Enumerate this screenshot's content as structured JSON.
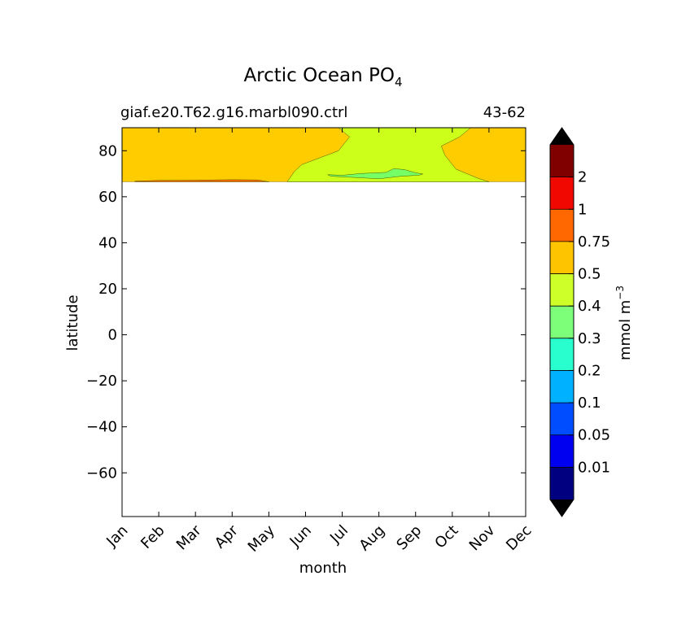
{
  "figure": {
    "title_main": "Arctic Ocean PO",
    "title_sub": "4",
    "left_label": "giaf.e20.T62.g16.marbl090.ctrl",
    "right_label": "43-62"
  },
  "chart_data": {
    "type": "contourf",
    "xlabel": "month",
    "ylabel": "latitude",
    "x_ticks": [
      "Jan",
      "Feb",
      "Mar",
      "Apr",
      "May",
      "Jun",
      "Jul",
      "Aug",
      "Sep",
      "Oct",
      "Nov",
      "Dec"
    ],
    "xlim": [
      1,
      12
    ],
    "y_ticks": [
      80,
      60,
      40,
      20,
      0,
      -20,
      -40,
      -60
    ],
    "ylim": [
      -79,
      90
    ],
    "data_lat_range": [
      66.5,
      90
    ],
    "background_region": {
      "level_color": "#ffcc00",
      "range": "0.5-0.75"
    },
    "regions": [
      {
        "level": "0.4-0.5",
        "color": "#ccff1a",
        "points": [
          [
            6.9,
            90
          ],
          [
            7.2,
            86
          ],
          [
            6.9,
            80
          ],
          [
            6.4,
            77
          ],
          [
            5.9,
            74
          ],
          [
            5.7,
            71
          ],
          [
            5.5,
            66.5
          ],
          [
            11.0,
            66.5
          ],
          [
            10.7,
            68
          ],
          [
            10.1,
            72
          ],
          [
            9.8,
            78
          ],
          [
            9.7,
            82
          ],
          [
            10.2,
            86
          ],
          [
            10.5,
            90
          ]
        ]
      },
      {
        "level": "0.3-0.4",
        "color": "#77ff66",
        "points": [
          [
            6.6,
            69.6
          ],
          [
            7.0,
            69.3
          ],
          [
            7.5,
            70.1
          ],
          [
            8.2,
            70.6
          ],
          [
            8.4,
            72.2
          ],
          [
            8.7,
            71.8
          ],
          [
            9.0,
            70.4
          ],
          [
            9.2,
            69.9
          ],
          [
            9.1,
            69.4
          ],
          [
            8.6,
            68.9
          ],
          [
            8.0,
            67.8
          ],
          [
            7.2,
            68.5
          ],
          [
            6.7,
            68.9
          ]
        ]
      },
      {
        "level": "0.75-1",
        "color": "#ff6600",
        "points": [
          [
            1.35,
            66.5
          ],
          [
            5.0,
            66.5
          ],
          [
            4.7,
            67.3
          ],
          [
            4.0,
            67.4
          ],
          [
            3.0,
            67.2
          ],
          [
            2.0,
            67.1
          ],
          [
            1.35,
            66.8
          ]
        ]
      }
    ],
    "colorbar": {
      "label": "mmol m",
      "label_exp": "−3",
      "boundaries": [
        "0.01",
        "0.05",
        "0.1",
        "0.2",
        "0.3",
        "0.4",
        "0.5",
        "0.75",
        "1",
        "2"
      ],
      "colors": [
        "#000080",
        "#0000f1",
        "#004dff",
        "#00b1ff",
        "#29ffce",
        "#7dff7a",
        "#ceff29",
        "#ffc400",
        "#ff6800",
        "#f10800",
        "#800000"
      ],
      "extend_low_color": "#000000",
      "extend_high_color": "#000000"
    }
  }
}
